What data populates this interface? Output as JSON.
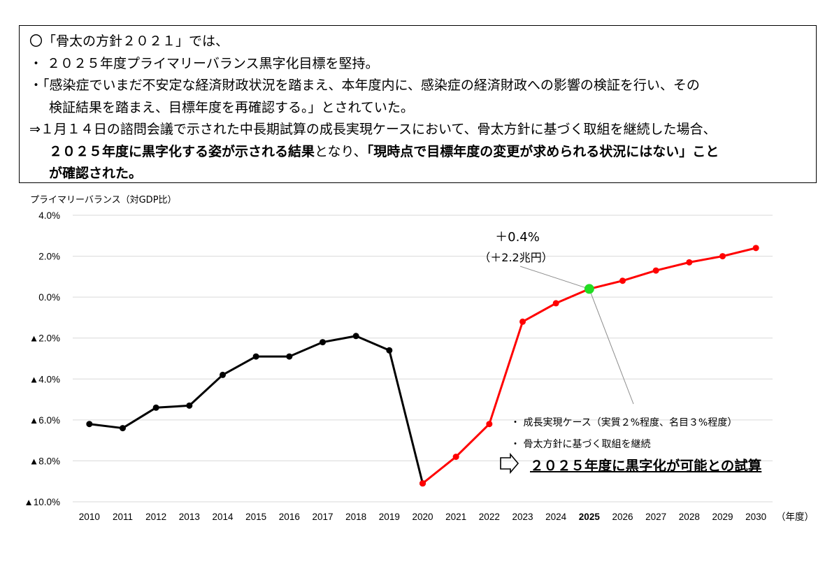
{
  "summary": {
    "line1": "〇「骨太の方針２０２１」では、",
    "line2": "・ ２０２５年度プライマリーバランス黒字化目標を堅持。",
    "line3": "・「感染症でいまだ不安定な経済財政状況を踏まえ、本年度内に、感染症の経済財政への影響の検証を行い、その",
    "line4": "検証結果を踏まえ、目標年度を再確認する。」とされていた。",
    "line5": "⇒１月１４日の諮問会議で示された中長期試算の成長実現ケースにおいて、骨太方針に基づく取組を継続した場合、",
    "line6_bold_a": "２０２５年度に黒字化する姿が示される結果",
    "line6_plain": "となり、",
    "line6_bold_b": "「現時点で目標年度の変更が求められる状況にはない」こと",
    "line7_bold": "が確認された。"
  },
  "chart_data": {
    "type": "line",
    "ylabel": "プライマリーバランス（対GDP比）",
    "xlabel": "（年度）",
    "ylim": [
      -10,
      4
    ],
    "yticks": [
      4,
      2,
      0,
      -2,
      -4,
      -6,
      -8,
      -10
    ],
    "ytick_labels": [
      "4.0%",
      "2.0%",
      "0.0%",
      "▲2.0%",
      "▲4.0%",
      "▲6.0%",
      "▲8.0%",
      "▲10.0%"
    ],
    "x": [
      2010,
      2011,
      2012,
      2013,
      2014,
      2015,
      2016,
      2017,
      2018,
      2019,
      2020,
      2021,
      2022,
      2023,
      2024,
      2025,
      2026,
      2027,
      2028,
      2029,
      2030
    ],
    "highlight_x": 2025,
    "grid": true,
    "series": [
      {
        "color": "#000000",
        "x": [
          2010,
          2011,
          2012,
          2013,
          2014,
          2015,
          2016,
          2017,
          2018,
          2019,
          2020
        ],
        "values": [
          -6.2,
          -6.4,
          -5.4,
          -5.3,
          -3.8,
          -2.9,
          -2.9,
          -2.2,
          -1.9,
          -2.6,
          -9.1
        ]
      },
      {
        "color": "#ff0000",
        "x": [
          2020,
          2021,
          2022,
          2023,
          2024,
          2025,
          2026,
          2027,
          2028,
          2029,
          2030
        ],
        "values": [
          -9.1,
          -7.8,
          -6.2,
          -1.2,
          -0.3,
          0.4,
          0.8,
          1.3,
          1.7,
          2.0,
          2.4
        ]
      }
    ],
    "highlight_point": {
      "x": 2025,
      "value": 0.4,
      "color": "#22dd22"
    },
    "annotation_value": "＋0.4%",
    "annotation_amount": "（＋2.2兆円）",
    "legend_item1": "・ 成長実現ケース（実質２%程度、名目３%程度）",
    "legend_item2": "・ 骨太方針に基づく取組を継続",
    "conclusion": "２０２５年度に黒字化が可能との試算"
  }
}
